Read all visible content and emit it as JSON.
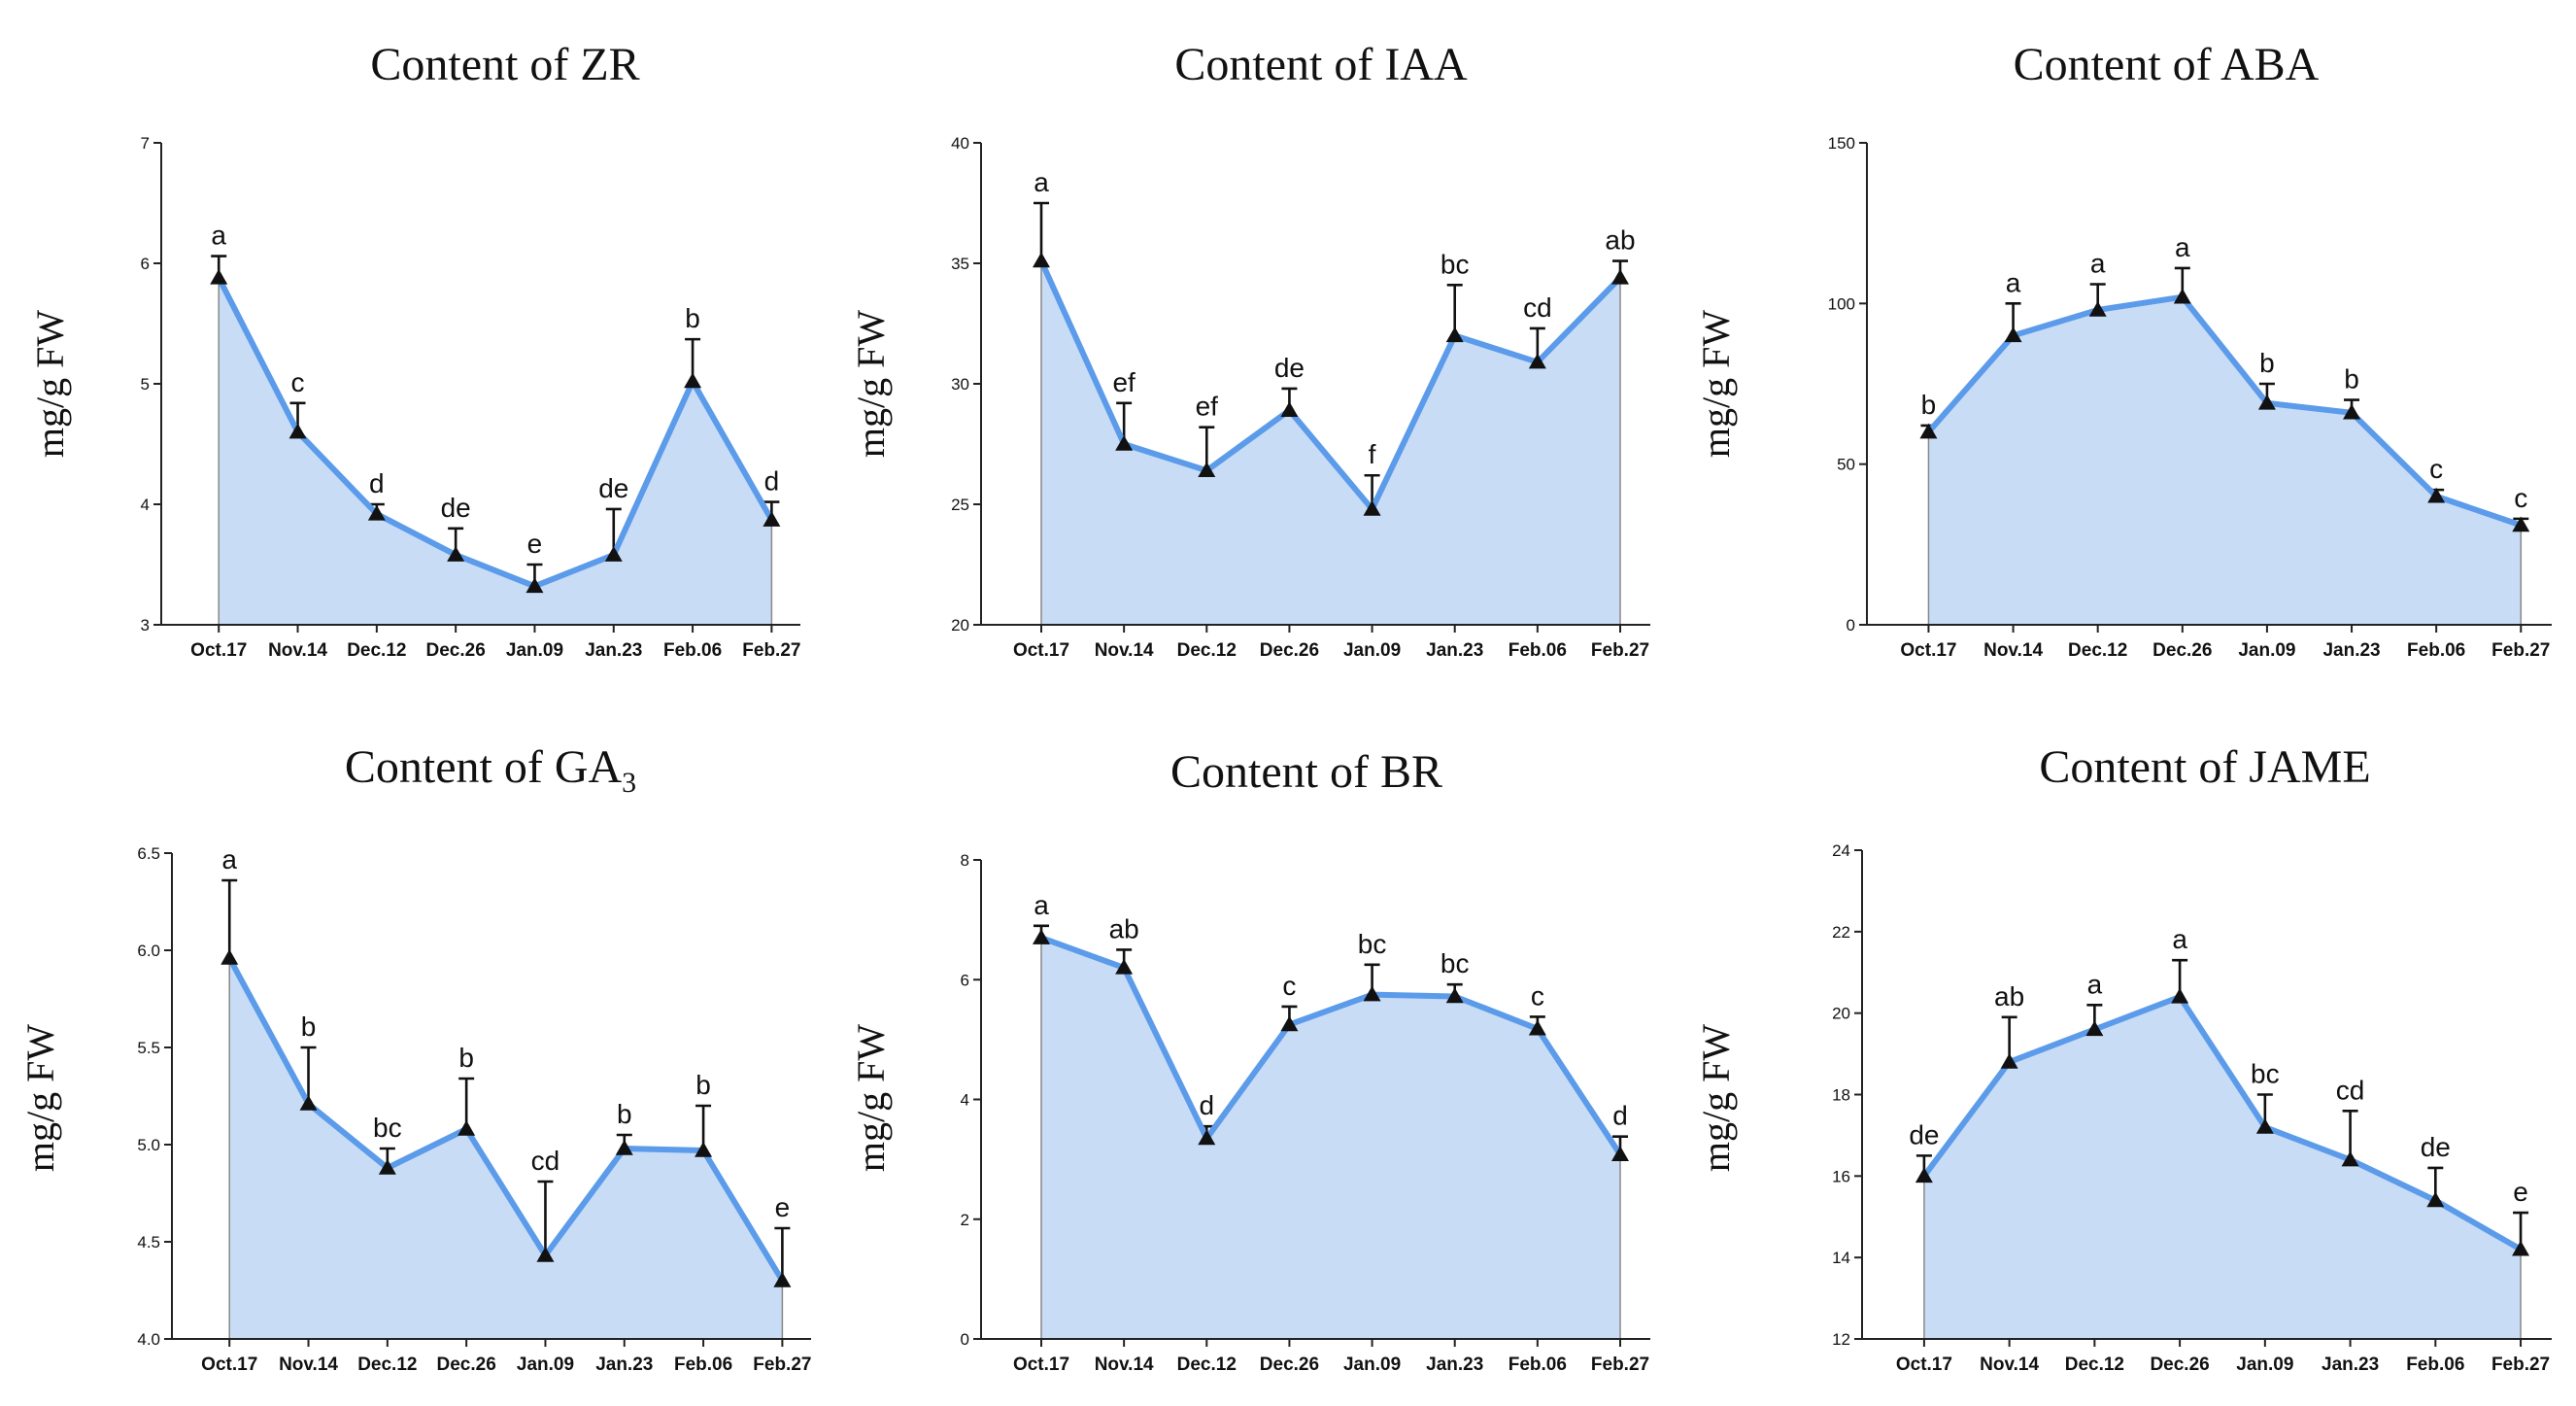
{
  "chart_data": [
    {
      "type": "area",
      "title": "Content of ZR",
      "title_sub": "",
      "ylabel": "mg/g FW",
      "ylim": [
        3,
        7
      ],
      "yticks": [
        "3",
        "4",
        "5",
        "6",
        "7"
      ],
      "yticks_values": [
        3,
        4,
        5,
        6,
        7
      ],
      "categories": [
        "Oct.17",
        "Nov.14",
        "Dec.12",
        "Dec.26",
        "Jan.09",
        "Jan.23",
        "Feb.06",
        "Feb.27"
      ],
      "values": [
        5.88,
        4.6,
        3.92,
        3.58,
        3.32,
        3.58,
        5.02,
        3.87
      ],
      "errors": [
        0.18,
        0.24,
        0.08,
        0.22,
        0.18,
        0.38,
        0.35,
        0.15
      ],
      "letters": [
        "a",
        "c",
        "d",
        "de",
        "e",
        "de",
        "b",
        "d"
      ]
    },
    {
      "type": "area",
      "title": "Content of IAA",
      "title_sub": "",
      "ylabel": "mg/g FW",
      "ylim": [
        20,
        40
      ],
      "yticks": [
        "20",
        "25",
        "30",
        "35",
        "40"
      ],
      "yticks_values": [
        20,
        25,
        30,
        35,
        40
      ],
      "categories": [
        "Oct.17",
        "Nov.14",
        "Dec.12",
        "Dec.26",
        "Jan.09",
        "Jan.23",
        "Feb.06",
        "Feb.27"
      ],
      "values": [
        35.1,
        27.5,
        26.4,
        28.9,
        24.8,
        32.0,
        30.9,
        34.4
      ],
      "errors": [
        2.4,
        1.7,
        1.8,
        0.9,
        1.4,
        2.1,
        1.4,
        0.7
      ],
      "letters": [
        "a",
        "ef",
        "ef",
        "de",
        "f",
        "bc",
        "cd",
        "ab"
      ]
    },
    {
      "type": "area",
      "title": "Content of ABA",
      "title_sub": "",
      "ylabel": "mg/g FW",
      "ylim": [
        0,
        150
      ],
      "yticks": [
        "0",
        "50",
        "100",
        "150"
      ],
      "yticks_values": [
        0,
        50,
        100,
        150
      ],
      "categories": [
        "Oct.17",
        "Nov.14",
        "Dec.12",
        "Dec.26",
        "Jan.09",
        "Jan.23",
        "Feb.06",
        "Feb.27"
      ],
      "values": [
        60,
        90,
        98,
        102,
        69,
        66,
        40,
        31
      ],
      "errors": [
        2,
        10,
        8,
        9,
        6,
        4,
        2,
        2
      ],
      "letters": [
        "b",
        "a",
        "a",
        "a",
        "b",
        "b",
        "c",
        "c"
      ]
    },
    {
      "type": "area",
      "title": "Content of GA",
      "title_sub": "3",
      "ylabel": "mg/g FW",
      "ylim": [
        4.0,
        6.5
      ],
      "yticks": [
        "4.0",
        "4.5",
        "5.0",
        "5.5",
        "6.0",
        "6.5"
      ],
      "yticks_values": [
        4.0,
        4.5,
        5.0,
        5.5,
        6.0,
        6.5
      ],
      "categories": [
        "Oct.17",
        "Nov.14",
        "Dec.12",
        "Dec.26",
        "Jan.09",
        "Jan.23",
        "Feb.06",
        "Feb.27"
      ],
      "values": [
        5.96,
        5.21,
        4.88,
        5.08,
        4.43,
        4.98,
        4.97,
        4.3
      ],
      "errors": [
        0.4,
        0.29,
        0.1,
        0.26,
        0.38,
        0.07,
        0.23,
        0.27
      ],
      "letters": [
        "a",
        "b",
        "bc",
        "b",
        "cd",
        "b",
        "b",
        "e"
      ]
    },
    {
      "type": "area",
      "title": "Content of BR",
      "title_sub": "",
      "ylabel": "mg/g FW",
      "ylim": [
        0,
        8
      ],
      "yticks": [
        "0",
        "2",
        "4",
        "6",
        "8"
      ],
      "yticks_values": [
        0,
        2,
        4,
        6,
        8
      ],
      "categories": [
        "Oct.17",
        "Nov.14",
        "Dec.12",
        "Dec.26",
        "Jan.09",
        "Jan.23",
        "Feb.06",
        "Feb.27"
      ],
      "values": [
        6.7,
        6.2,
        3.35,
        5.25,
        5.75,
        5.72,
        5.18,
        3.08
      ],
      "errors": [
        0.2,
        0.3,
        0.2,
        0.3,
        0.5,
        0.2,
        0.2,
        0.3
      ],
      "letters": [
        "a",
        "ab",
        "d",
        "c",
        "bc",
        "bc",
        "c",
        "d"
      ]
    },
    {
      "type": "area",
      "title": "Content of JAME",
      "title_sub": "",
      "ylabel": "mg/g FW",
      "ylim": [
        12,
        24
      ],
      "yticks": [
        "12",
        "14",
        "16",
        "18",
        "20",
        "22",
        "24"
      ],
      "yticks_values": [
        12,
        14,
        16,
        18,
        20,
        22,
        24
      ],
      "categories": [
        "Oct.17",
        "Nov.14",
        "Dec.12",
        "Dec.26",
        "Jan.09",
        "Jan.23",
        "Feb.06",
        "Feb.27"
      ],
      "values": [
        16.0,
        18.8,
        19.6,
        20.4,
        17.2,
        16.4,
        15.4,
        14.2
      ],
      "errors": [
        0.5,
        1.1,
        0.6,
        0.9,
        0.8,
        1.2,
        0.8,
        0.9
      ],
      "letters": [
        "de",
        "ab",
        "a",
        "a",
        "bc",
        "cd",
        "de",
        "e"
      ]
    }
  ]
}
